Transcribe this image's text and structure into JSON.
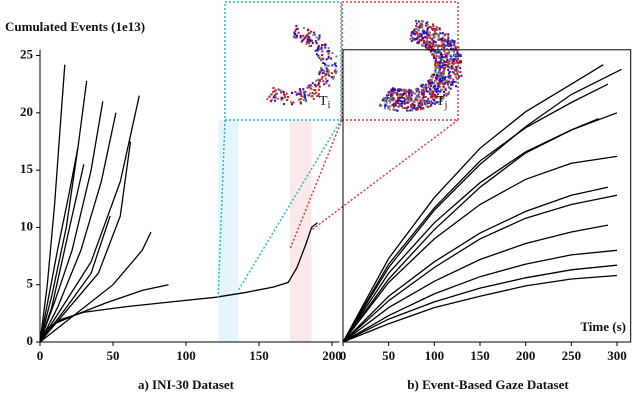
{
  "chart_data": [
    {
      "type": "line",
      "ylabel": "Cumulated Events (1e13)",
      "title": "a) INI-30 Dataset",
      "color": "#000000",
      "xlim": [
        0,
        205
      ],
      "ylim": [
        0,
        25.5
      ],
      "xticks": [
        0,
        50,
        100,
        150,
        200
      ],
      "yticks": [
        0,
        5,
        10,
        15,
        20,
        25
      ],
      "highlights": [
        {
          "range": [
            122,
            136
          ],
          "color": "#e4f6fb",
          "border": "#22b8cc"
        },
        {
          "range": [
            171,
            186
          ],
          "color": "#fbe9ea",
          "border": "#e03838"
        }
      ],
      "insets": [
        {
          "base": "T",
          "sub": "i"
        },
        {
          "base": "T",
          "sub": "j"
        }
      ],
      "series": [
        {
          "x": [
            0,
            5,
            15,
            30,
            60,
            90,
            120,
            140,
            160,
            170,
            176,
            182,
            186,
            190
          ],
          "values": [
            0,
            1.2,
            2.0,
            2.6,
            3.1,
            3.5,
            3.9,
            4.3,
            4.8,
            5.2,
            6.5,
            8.5,
            10.0,
            10.4
          ]
        },
        {
          "x": [
            0,
            10,
            25,
            45,
            70,
            88
          ],
          "values": [
            0,
            1.6,
            2.4,
            3.4,
            4.5,
            5.0
          ]
        },
        {
          "x": [
            0,
            5,
            10,
            14,
            17
          ],
          "values": [
            0,
            5,
            12,
            19,
            24.2
          ]
        },
        {
          "x": [
            0,
            8,
            18,
            26,
            32
          ],
          "values": [
            0,
            4,
            10,
            17,
            22.8
          ]
        },
        {
          "x": [
            0,
            10,
            22,
            35,
            43
          ],
          "values": [
            0,
            3.5,
            8,
            15,
            21
          ]
        },
        {
          "x": [
            0,
            12,
            28,
            42,
            52
          ],
          "values": [
            0,
            3,
            8,
            14,
            20
          ]
        },
        {
          "x": [
            0,
            15,
            35,
            55,
            68
          ],
          "values": [
            0,
            3,
            7,
            14,
            21.5
          ]
        },
        {
          "x": [
            0,
            20,
            40,
            55,
            62
          ],
          "values": [
            0,
            3,
            6,
            11,
            17.5
          ]
        },
        {
          "x": [
            0,
            25,
            50,
            70,
            76
          ],
          "values": [
            0,
            2.5,
            5,
            8,
            9.6
          ]
        },
        {
          "x": [
            0,
            6,
            12,
            20,
            26
          ],
          "values": [
            0,
            4,
            8,
            13,
            17
          ]
        },
        {
          "x": [
            0,
            8,
            15,
            22,
            30
          ],
          "values": [
            0,
            3,
            7,
            11,
            15.5
          ]
        },
        {
          "x": [
            0,
            18,
            35,
            48
          ],
          "values": [
            0,
            3,
            6,
            11
          ]
        }
      ]
    },
    {
      "type": "line",
      "xlabel": "Time (s)",
      "title": "b) Event-Based Gaze Dataset",
      "color": "#000000",
      "xlim": [
        0,
        315
      ],
      "ylim": [
        0,
        25.5
      ],
      "xticks": [
        0,
        50,
        100,
        150,
        200,
        250,
        300
      ],
      "series": [
        {
          "x": [
            0,
            50,
            100,
            150,
            200,
            250,
            285
          ],
          "values": [
            0,
            7.3,
            12.6,
            16.9,
            20.1,
            22.5,
            24.2
          ]
        },
        {
          "x": [
            0,
            50,
            100,
            150,
            200,
            250,
            305
          ],
          "values": [
            0,
            6.5,
            11.5,
            15.5,
            18.8,
            21.6,
            23.8
          ]
        },
        {
          "x": [
            0,
            50,
            100,
            150,
            200,
            250,
            290
          ],
          "values": [
            0,
            6.8,
            11.7,
            15.8,
            18.7,
            20.9,
            22.5
          ]
        },
        {
          "x": [
            0,
            50,
            100,
            150,
            200,
            250,
            300
          ],
          "values": [
            0,
            5.5,
            9.8,
            13.5,
            16.5,
            18.5,
            20.0
          ]
        },
        {
          "x": [
            0,
            50,
            100,
            150,
            200,
            250,
            280
          ],
          "values": [
            0,
            6,
            10.4,
            13.9,
            16.6,
            18.5,
            19.5
          ]
        },
        {
          "x": [
            0,
            50,
            100,
            150,
            200,
            250,
            300
          ],
          "values": [
            0,
            5.2,
            9,
            12,
            14.2,
            15.6,
            16.2
          ]
        },
        {
          "x": [
            0,
            50,
            100,
            150,
            200,
            250,
            290
          ],
          "values": [
            0,
            4,
            7,
            9.5,
            11.4,
            12.8,
            13.5
          ]
        },
        {
          "x": [
            0,
            50,
            100,
            150,
            200,
            250,
            300
          ],
          "values": [
            0,
            3.6,
            6.5,
            9,
            10.8,
            12,
            12.8
          ]
        },
        {
          "x": [
            0,
            50,
            100,
            150,
            200,
            250,
            290
          ],
          "values": [
            0,
            3,
            5.3,
            7.2,
            8.6,
            9.6,
            10.2
          ]
        },
        {
          "x": [
            0,
            50,
            100,
            150,
            200,
            250,
            300
          ],
          "values": [
            0,
            2.3,
            4.2,
            5.7,
            6.8,
            7.6,
            8.0
          ]
        },
        {
          "x": [
            0,
            50,
            100,
            150,
            200,
            250,
            300
          ],
          "values": [
            0,
            2,
            3.5,
            4.7,
            5.6,
            6.3,
            6.7
          ]
        },
        {
          "x": [
            0,
            50,
            100,
            150,
            200,
            250,
            300
          ],
          "values": [
            0,
            1.6,
            3,
            4,
            4.9,
            5.5,
            5.8
          ]
        }
      ]
    }
  ]
}
